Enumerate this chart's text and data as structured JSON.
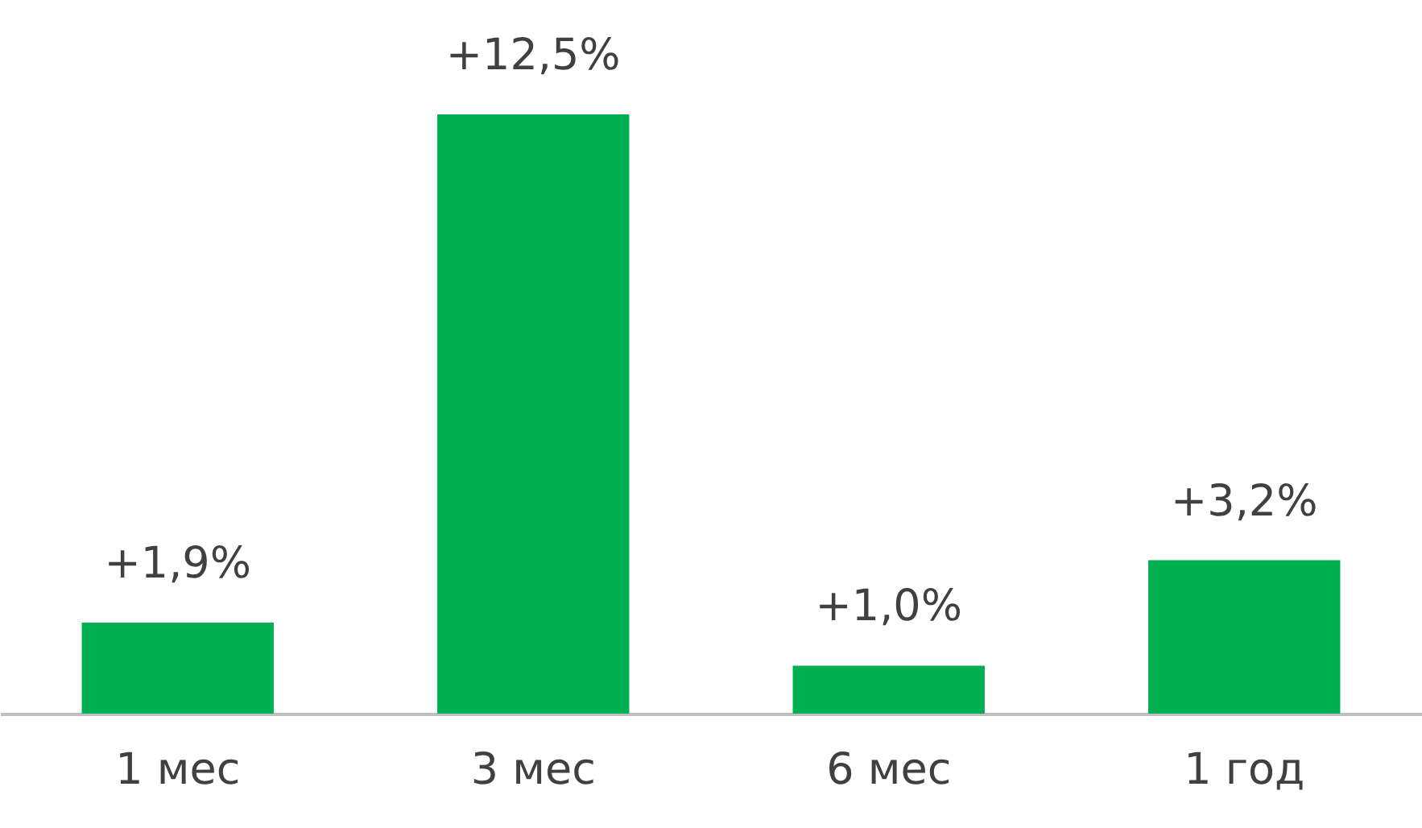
{
  "chart_data": {
    "type": "bar",
    "categories": [
      "1 мес",
      "3 мес",
      "6 мес",
      "1 год"
    ],
    "values": [
      1.9,
      12.5,
      1.0,
      3.2
    ],
    "value_labels": [
      "+1,9%",
      "+12,5%",
      "+1,0%",
      "+3,2%"
    ],
    "color": "#00b050",
    "grid": false
  }
}
